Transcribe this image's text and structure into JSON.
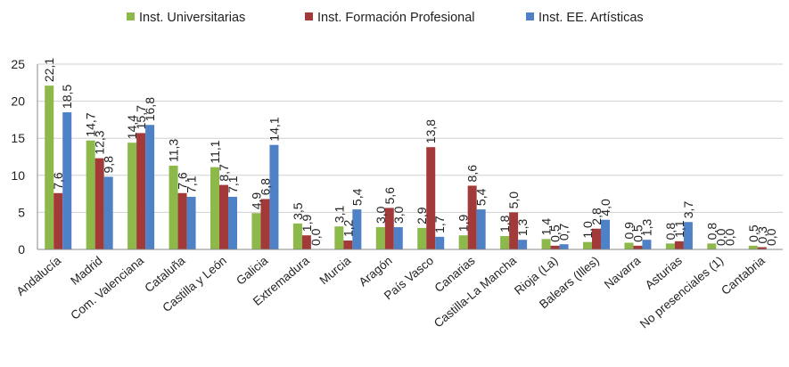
{
  "chart_data": {
    "type": "bar",
    "title": "",
    "xlabel": "",
    "ylabel": "",
    "ylim": [
      0,
      25
    ],
    "yticks": [
      0,
      5,
      10,
      15,
      20,
      25
    ],
    "grid": true,
    "legend_position": "top",
    "categories": [
      "Andalucía",
      "Madrid",
      "Com. Valenciana",
      "Cataluña",
      "Castilla y León",
      "Galicia",
      "Extremadura",
      "Murcia",
      "Aragón",
      "País Vasco",
      "Canarias",
      "Castilla-La Mancha",
      "Rioja (La)",
      "Balears (Illes)",
      "Navarra",
      "Asturias",
      "No presenciales (1)",
      "Cantabria"
    ],
    "series": [
      {
        "name": "Inst. Universitarias",
        "color": "#8db84a",
        "values": [
          22.1,
          14.7,
          14.4,
          11.3,
          11.1,
          4.9,
          3.5,
          3.1,
          3.0,
          2.9,
          1.9,
          1.8,
          1.4,
          1.0,
          0.9,
          0.8,
          0.8,
          0.5
        ],
        "labels": [
          "22,1",
          "14,7",
          "14,4",
          "11,3",
          "11,1",
          "4,9",
          "3,5",
          "3,1",
          "3,0",
          "2,9",
          "1,9",
          "1,8",
          "1,4",
          "1,0",
          "0,9",
          "0,8",
          "0,8",
          "0,5"
        ]
      },
      {
        "name": "Inst. Formación Profesional",
        "color": "#a33a3a",
        "values": [
          7.6,
          12.3,
          15.7,
          7.6,
          8.7,
          6.8,
          1.9,
          1.2,
          5.6,
          13.8,
          8.6,
          5.0,
          0.5,
          2.8,
          0.5,
          1.1,
          0.0,
          0.3
        ],
        "labels": [
          "7,6",
          "12,3",
          "15,7",
          "7,6",
          "8,7",
          "6,8",
          "1,9",
          "1,2",
          "5,6",
          "13,8",
          "8,6",
          "5,0",
          "0,5",
          "2,8",
          "0,5",
          "1,1",
          "0,0",
          "0,3"
        ]
      },
      {
        "name": "Inst. EE. Artísticas",
        "color": "#4f81c7",
        "values": [
          18.5,
          9.8,
          16.8,
          7.1,
          7.1,
          14.1,
          0.0,
          5.4,
          3.0,
          1.7,
          5.4,
          1.3,
          0.7,
          4.0,
          1.3,
          3.7,
          0.0,
          0.0
        ],
        "labels": [
          "18,5",
          "9,8",
          "16,8",
          "7,1",
          "7,1",
          "14,1",
          "0,0",
          "5,4",
          "3,0",
          "1,7",
          "5,4",
          "1,3",
          "0,7",
          "4,0",
          "1,3",
          "3,7",
          "0,0",
          "0,0"
        ]
      }
    ]
  }
}
